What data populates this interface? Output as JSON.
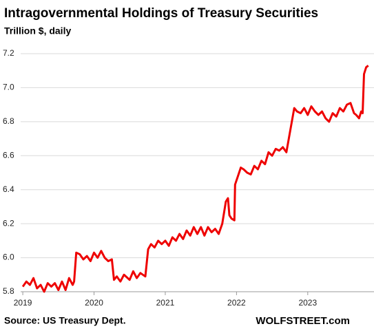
{
  "chart_data": {
    "type": "line",
    "title": "Intragovernmental Holdings of Treasury Securities",
    "subtitle": "Trillion $, daily",
    "source": "Source: US Treasury Dept.",
    "brand": "WOLFSTREET.com",
    "x": [
      2019.0,
      2019.05,
      2019.1,
      2019.15,
      2019.2,
      2019.25,
      2019.3,
      2019.35,
      2019.4,
      2019.45,
      2019.5,
      2019.55,
      2019.6,
      2019.65,
      2019.7,
      2019.72,
      2019.75,
      2019.8,
      2019.85,
      2019.9,
      2019.95,
      2020.0,
      2020.05,
      2020.1,
      2020.15,
      2020.2,
      2020.25,
      2020.28,
      2020.32,
      2020.37,
      2020.42,
      2020.5,
      2020.55,
      2020.6,
      2020.65,
      2020.72,
      2020.76,
      2020.8,
      2020.85,
      2020.9,
      2020.95,
      2021.0,
      2021.05,
      2021.1,
      2021.15,
      2021.2,
      2021.25,
      2021.3,
      2021.35,
      2021.4,
      2021.45,
      2021.5,
      2021.55,
      2021.6,
      2021.65,
      2021.7,
      2021.75,
      2021.8,
      2021.85,
      2021.88,
      2021.9,
      2021.93,
      2021.97,
      2021.98,
      2022.02,
      2022.06,
      2022.1,
      2022.15,
      2022.2,
      2022.25,
      2022.3,
      2022.35,
      2022.4,
      2022.45,
      2022.5,
      2022.55,
      2022.6,
      2022.65,
      2022.7,
      2022.81,
      2022.85,
      2022.9,
      2022.95,
      2023.0,
      2023.05,
      2023.1,
      2023.15,
      2023.2,
      2023.25,
      2023.3,
      2023.35,
      2023.4,
      2023.45,
      2023.5,
      2023.55,
      2023.6,
      2023.65,
      2023.68,
      2023.72,
      2023.75,
      2023.77,
      2023.79,
      2023.82,
      2023.85
    ],
    "series": [
      {
        "name": "Intragovernmental holdings",
        "color": "#ee0000",
        "values": [
          5.83,
          5.86,
          5.84,
          5.88,
          5.82,
          5.84,
          5.8,
          5.85,
          5.83,
          5.85,
          5.81,
          5.86,
          5.81,
          5.88,
          5.84,
          5.86,
          6.03,
          6.02,
          5.99,
          6.01,
          5.98,
          6.03,
          6.0,
          6.04,
          6.0,
          5.98,
          5.99,
          5.87,
          5.89,
          5.86,
          5.9,
          5.87,
          5.92,
          5.88,
          5.91,
          5.89,
          6.05,
          6.08,
          6.06,
          6.1,
          6.08,
          6.1,
          6.07,
          6.12,
          6.1,
          6.14,
          6.11,
          6.16,
          6.13,
          6.18,
          6.14,
          6.18,
          6.13,
          6.18,
          6.15,
          6.17,
          6.14,
          6.2,
          6.33,
          6.35,
          6.25,
          6.23,
          6.22,
          6.43,
          6.48,
          6.53,
          6.52,
          6.5,
          6.49,
          6.54,
          6.52,
          6.57,
          6.55,
          6.62,
          6.6,
          6.64,
          6.63,
          6.65,
          6.62,
          6.88,
          6.86,
          6.85,
          6.88,
          6.84,
          6.89,
          6.86,
          6.84,
          6.86,
          6.82,
          6.8,
          6.85,
          6.83,
          6.88,
          6.86,
          6.9,
          6.91,
          6.85,
          6.84,
          6.82,
          6.86,
          6.85,
          7.08,
          7.12,
          7.13
        ]
      }
    ],
    "xlim": [
      2018.97,
      2023.93
    ],
    "xticks": [
      2019,
      2020,
      2021,
      2022,
      2023
    ],
    "ylim": [
      5.8,
      7.2
    ],
    "yticks": [
      5.8,
      {
        "value": 6.0,
        "label": "6.0"
      },
      6.2,
      6.4,
      6.6,
      6.8,
      {
        "value": 7.0,
        "label": "7.0"
      },
      7.2
    ],
    "grid": true
  }
}
